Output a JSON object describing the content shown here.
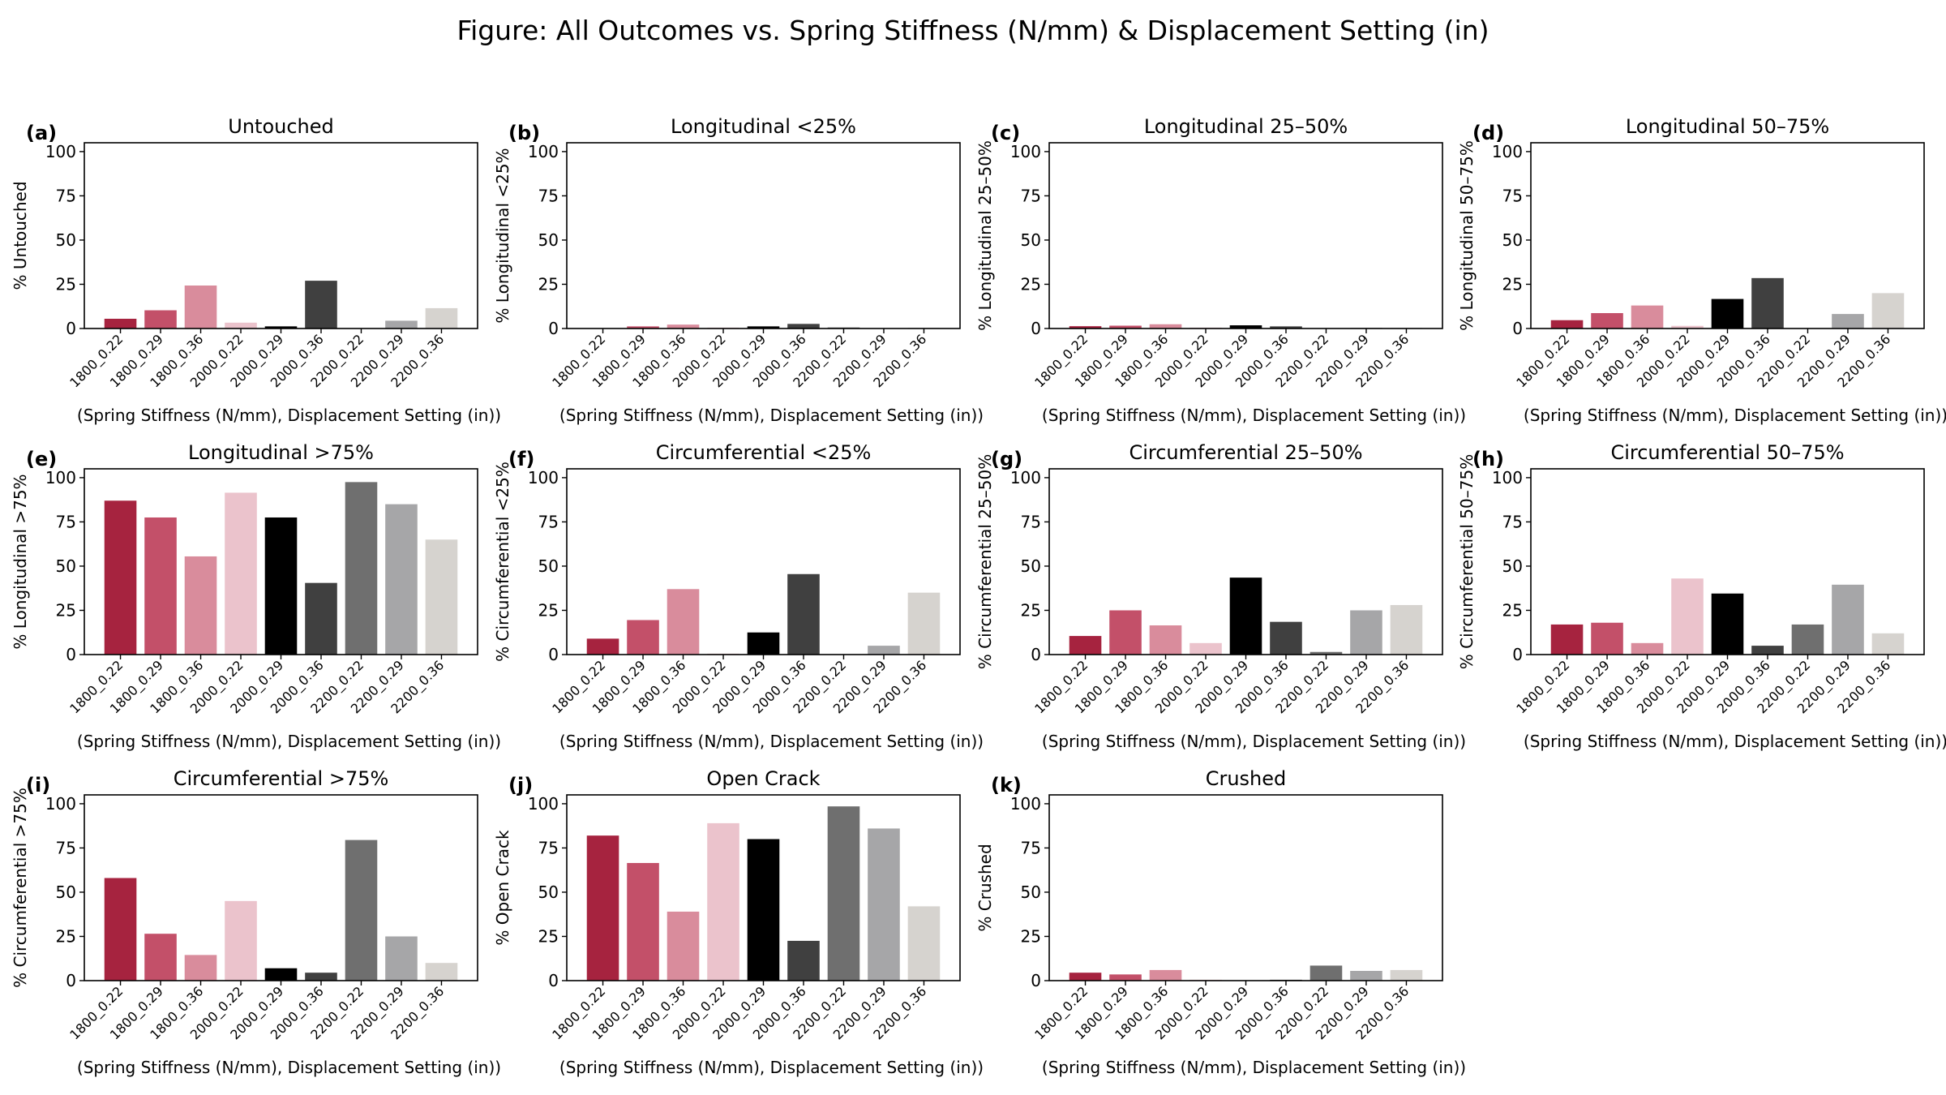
{
  "figure": {
    "title": "Figure: All Outcomes vs. Spring Stiffness (N/mm) & Displacement Setting (in)"
  },
  "colors": [
    "#a6233f",
    "#c35069",
    "#d98c9c",
    "#ebc3cc",
    "#000000",
    "#404040",
    "#6f6f6f",
    "#a6a6a8",
    "#d6d3cf"
  ],
  "chart_data": [
    {
      "type": "bar",
      "panel": "(a)",
      "title": "Untouched",
      "xlabel": "(Spring Stiffness (N/mm), Displacement Setting (in))",
      "ylabel": "% Untouched",
      "categories": [
        "1800_0.22",
        "1800_0.29",
        "1800_0.36",
        "2000_0.22",
        "2000_0.29",
        "2000_0.36",
        "2200_0.22",
        "2200_0.29",
        "2200_0.36"
      ],
      "values": [
        5.5,
        10.3,
        24.3,
        3.3,
        1.2,
        27.0,
        0.0,
        4.4,
        11.5
      ],
      "ylim": [
        0,
        105
      ],
      "yticks": [
        0,
        25,
        50,
        75,
        100
      ]
    },
    {
      "type": "bar",
      "panel": "(b)",
      "title": "Longitudinal <25%",
      "xlabel": "(Spring Stiffness (N/mm), Displacement Setting (in))",
      "ylabel": "% Longitudinal <25%",
      "categories": [
        "1800_0.22",
        "1800_0.29",
        "1800_0.36",
        "2000_0.22",
        "2000_0.29",
        "2000_0.36",
        "2200_0.22",
        "2200_0.29",
        "2200_0.36"
      ],
      "values": [
        0.0,
        1.2,
        2.2,
        0.5,
        1.2,
        2.6,
        0.6,
        0.0,
        0.4
      ],
      "ylim": [
        0,
        105
      ],
      "yticks": [
        0,
        25,
        50,
        75,
        100
      ]
    },
    {
      "type": "bar",
      "panel": "(c)",
      "title": "Longitudinal 25–50%",
      "xlabel": "(Spring Stiffness (N/mm), Displacement Setting (in))",
      "ylabel": "% Longitudinal 25–50%",
      "categories": [
        "1800_0.22",
        "1800_0.29",
        "1800_0.36",
        "2000_0.22",
        "2000_0.29",
        "2000_0.36",
        "2200_0.22",
        "2200_0.29",
        "2200_0.36"
      ],
      "values": [
        1.3,
        1.6,
        2.4,
        0.5,
        1.8,
        1.2,
        0.0,
        0.4,
        0.4
      ],
      "ylim": [
        0,
        105
      ],
      "yticks": [
        0,
        25,
        50,
        75,
        100
      ]
    },
    {
      "type": "bar",
      "panel": "(d)",
      "title": "Longitudinal 50–75%",
      "xlabel": "(Spring Stiffness (N/mm), Displacement Setting (in))",
      "ylabel": "% Longitudinal 50–75%",
      "categories": [
        "1800_0.22",
        "1800_0.29",
        "1800_0.36",
        "2000_0.22",
        "2000_0.29",
        "2000_0.36",
        "2200_0.22",
        "2200_0.29",
        "2200_0.36"
      ],
      "values": [
        4.7,
        8.7,
        13.0,
        1.5,
        16.7,
        28.5,
        0.0,
        8.2,
        20.0
      ],
      "ylim": [
        0,
        105
      ],
      "yticks": [
        0,
        25,
        50,
        75,
        100
      ]
    },
    {
      "type": "bar",
      "panel": "(e)",
      "title": "Longitudinal >75%",
      "xlabel": "(Spring Stiffness (N/mm), Displacement Setting (in))",
      "ylabel": "% Longitudinal >75%",
      "categories": [
        "1800_0.22",
        "1800_0.29",
        "1800_0.36",
        "2000_0.22",
        "2000_0.29",
        "2000_0.36",
        "2200_0.22",
        "2200_0.29",
        "2200_0.36"
      ],
      "values": [
        87.0,
        77.5,
        55.5,
        91.5,
        77.5,
        40.5,
        97.5,
        85.0,
        65.0
      ],
      "ylim": [
        0,
        105
      ],
      "yticks": [
        0,
        25,
        50,
        75,
        100
      ]
    },
    {
      "type": "bar",
      "panel": "(f)",
      "title": "Circumferential <25%",
      "xlabel": "(Spring Stiffness (N/mm), Displacement Setting (in))",
      "ylabel": "% Circumferential <25%",
      "categories": [
        "1800_0.22",
        "1800_0.29",
        "1800_0.36",
        "2000_0.22",
        "2000_0.29",
        "2000_0.36",
        "2200_0.22",
        "2200_0.29",
        "2200_0.36"
      ],
      "values": [
        9.0,
        19.5,
        37.0,
        0.5,
        12.5,
        45.5,
        0.0,
        5.0,
        35.0
      ],
      "ylim": [
        0,
        105
      ],
      "yticks": [
        0,
        25,
        50,
        75,
        100
      ]
    },
    {
      "type": "bar",
      "panel": "(g)",
      "title": "Circumferential 25–50%",
      "xlabel": "(Spring Stiffness (N/mm), Displacement Setting (in))",
      "ylabel": "% Circumferential 25–50%",
      "categories": [
        "1800_0.22",
        "1800_0.29",
        "1800_0.36",
        "2000_0.22",
        "2000_0.29",
        "2000_0.36",
        "2200_0.22",
        "2200_0.29",
        "2200_0.36"
      ],
      "values": [
        10.5,
        25.0,
        16.5,
        6.5,
        43.5,
        18.5,
        1.5,
        25.0,
        28.0
      ],
      "ylim": [
        0,
        105
      ],
      "yticks": [
        0,
        25,
        50,
        75,
        100
      ]
    },
    {
      "type": "bar",
      "panel": "(h)",
      "title": "Circumferential 50–75%",
      "xlabel": "(Spring Stiffness (N/mm), Displacement Setting (in))",
      "ylabel": "% Circumferential 50–75%",
      "categories": [
        "1800_0.22",
        "1800_0.29",
        "1800_0.36",
        "2000_0.22",
        "2000_0.29",
        "2000_0.36",
        "2200_0.22",
        "2200_0.29",
        "2200_0.36"
      ],
      "values": [
        17.0,
        18.0,
        6.5,
        43.0,
        34.5,
        5.0,
        17.0,
        39.5,
        12.0
      ],
      "ylim": [
        0,
        105
      ],
      "yticks": [
        0,
        25,
        50,
        75,
        100
      ]
    },
    {
      "type": "bar",
      "panel": "(i)",
      "title": "Circumferential >75%",
      "xlabel": "(Spring Stiffness (N/mm), Displacement Setting (in))",
      "ylabel": "% Circumferential >75%",
      "categories": [
        "1800_0.22",
        "1800_0.29",
        "1800_0.36",
        "2000_0.22",
        "2000_0.29",
        "2000_0.36",
        "2200_0.22",
        "2200_0.29",
        "2200_0.36"
      ],
      "values": [
        58.0,
        26.5,
        14.5,
        45.0,
        7.0,
        4.5,
        79.5,
        25.0,
        10.0
      ],
      "ylim": [
        0,
        105
      ],
      "yticks": [
        0,
        25,
        50,
        75,
        100
      ]
    },
    {
      "type": "bar",
      "panel": "(j)",
      "title": "Open Crack",
      "xlabel": "(Spring Stiffness (N/mm), Displacement Setting (in))",
      "ylabel": "% Open Crack",
      "categories": [
        "1800_0.22",
        "1800_0.29",
        "1800_0.36",
        "2000_0.22",
        "2000_0.29",
        "2000_0.36",
        "2200_0.22",
        "2200_0.29",
        "2200_0.36"
      ],
      "values": [
        82.0,
        66.5,
        39.0,
        89.0,
        80.0,
        22.5,
        98.5,
        86.0,
        42.0
      ],
      "ylim": [
        0,
        105
      ],
      "yticks": [
        0,
        25,
        50,
        75,
        100
      ]
    },
    {
      "type": "bar",
      "panel": "(k)",
      "title": "Crushed",
      "xlabel": "(Spring Stiffness (N/mm), Displacement Setting (in))",
      "ylabel": "% Crushed",
      "categories": [
        "1800_0.22",
        "1800_0.29",
        "1800_0.36",
        "2000_0.22",
        "2000_0.29",
        "2000_0.36",
        "2200_0.22",
        "2200_0.29",
        "2200_0.36"
      ],
      "values": [
        4.5,
        3.5,
        6.0,
        0.5,
        0.0,
        0.5,
        8.5,
        5.5,
        6.0
      ],
      "ylim": [
        0,
        105
      ],
      "yticks": [
        0,
        25,
        50,
        75,
        100
      ]
    }
  ]
}
